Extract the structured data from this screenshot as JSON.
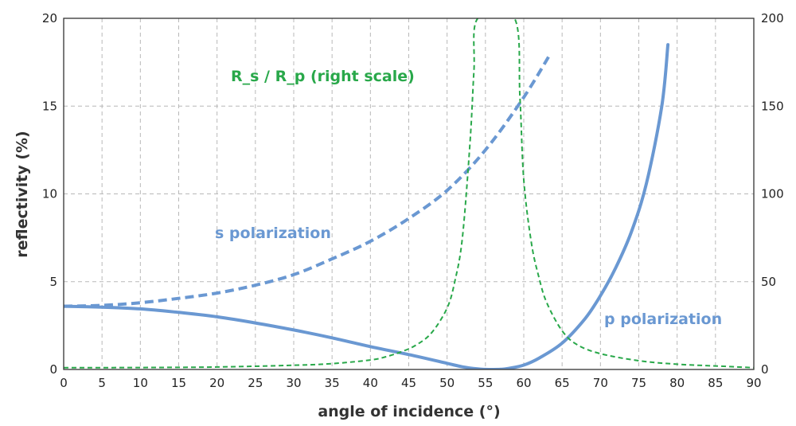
{
  "chart_data": {
    "type": "line",
    "xlabel": "angle of incidence (°)",
    "ylabel": "reflectivity (%)",
    "xlim": [
      0,
      90
    ],
    "ylim": [
      0,
      20
    ],
    "y2lim": [
      0,
      200
    ],
    "xticks": [
      "0",
      "5",
      "10",
      "15",
      "20",
      "25",
      "30",
      "35",
      "40",
      "45",
      "50",
      "55",
      "60",
      "65",
      "70",
      "75",
      "80",
      "85",
      "90"
    ],
    "yticks": [
      "0",
      "5",
      "10",
      "15",
      "20"
    ],
    "y2ticks": [
      "0",
      "50",
      "100",
      "150",
      "200"
    ],
    "grid": true,
    "annotations": {
      "s": "s polarization",
      "p": "p polarization",
      "ratio": "R_s / R_p (right scale)"
    },
    "colors": {
      "blue": "#6a98d2",
      "green": "#29a84a",
      "grid": "#b8b8b8"
    },
    "series": [
      {
        "key": "s",
        "axis": "left",
        "style": "dashed",
        "x": [
          0,
          5,
          10,
          15,
          20,
          25,
          30,
          35,
          40,
          45,
          50,
          55,
          60,
          63.5
        ],
        "y": [
          3.6,
          3.65,
          3.8,
          4.05,
          4.35,
          4.8,
          5.4,
          6.3,
          7.3,
          8.6,
          10.2,
          12.5,
          15.5,
          18.0
        ]
      },
      {
        "key": "p",
        "axis": "left",
        "style": "solid",
        "x": [
          0,
          5,
          10,
          15,
          20,
          25,
          30,
          35,
          40,
          45,
          50,
          52,
          54,
          55,
          56,
          57,
          58,
          60,
          62,
          65,
          68,
          70,
          72,
          74,
          76,
          78,
          78.8
        ],
        "y": [
          3.6,
          3.55,
          3.45,
          3.25,
          3.0,
          2.65,
          2.25,
          1.8,
          1.3,
          0.85,
          0.35,
          0.15,
          0.03,
          0.005,
          0.0,
          0.01,
          0.06,
          0.25,
          0.65,
          1.5,
          2.9,
          4.2,
          5.8,
          7.8,
          10.6,
          15.0,
          18.5
        ]
      },
      {
        "key": "ratio",
        "axis": "right",
        "style": "dashed",
        "x": [
          0,
          10,
          20,
          30,
          35,
          40,
          42,
          44,
          46,
          48,
          50,
          51,
          52,
          53,
          53.5,
          54,
          58.8,
          59.5,
          60,
          61,
          62,
          63,
          65,
          67,
          70,
          75,
          80,
          85,
          90
        ],
        "y": [
          1.0,
          1.1,
          1.4,
          2.4,
          3.3,
          5.4,
          7.2,
          10,
          14,
          21,
          35,
          50,
          75,
          130,
          170,
          200,
          200,
          155,
          108,
          72,
          52,
          38,
          22,
          14,
          9,
          5,
          3,
          2,
          1
        ]
      }
    ]
  }
}
